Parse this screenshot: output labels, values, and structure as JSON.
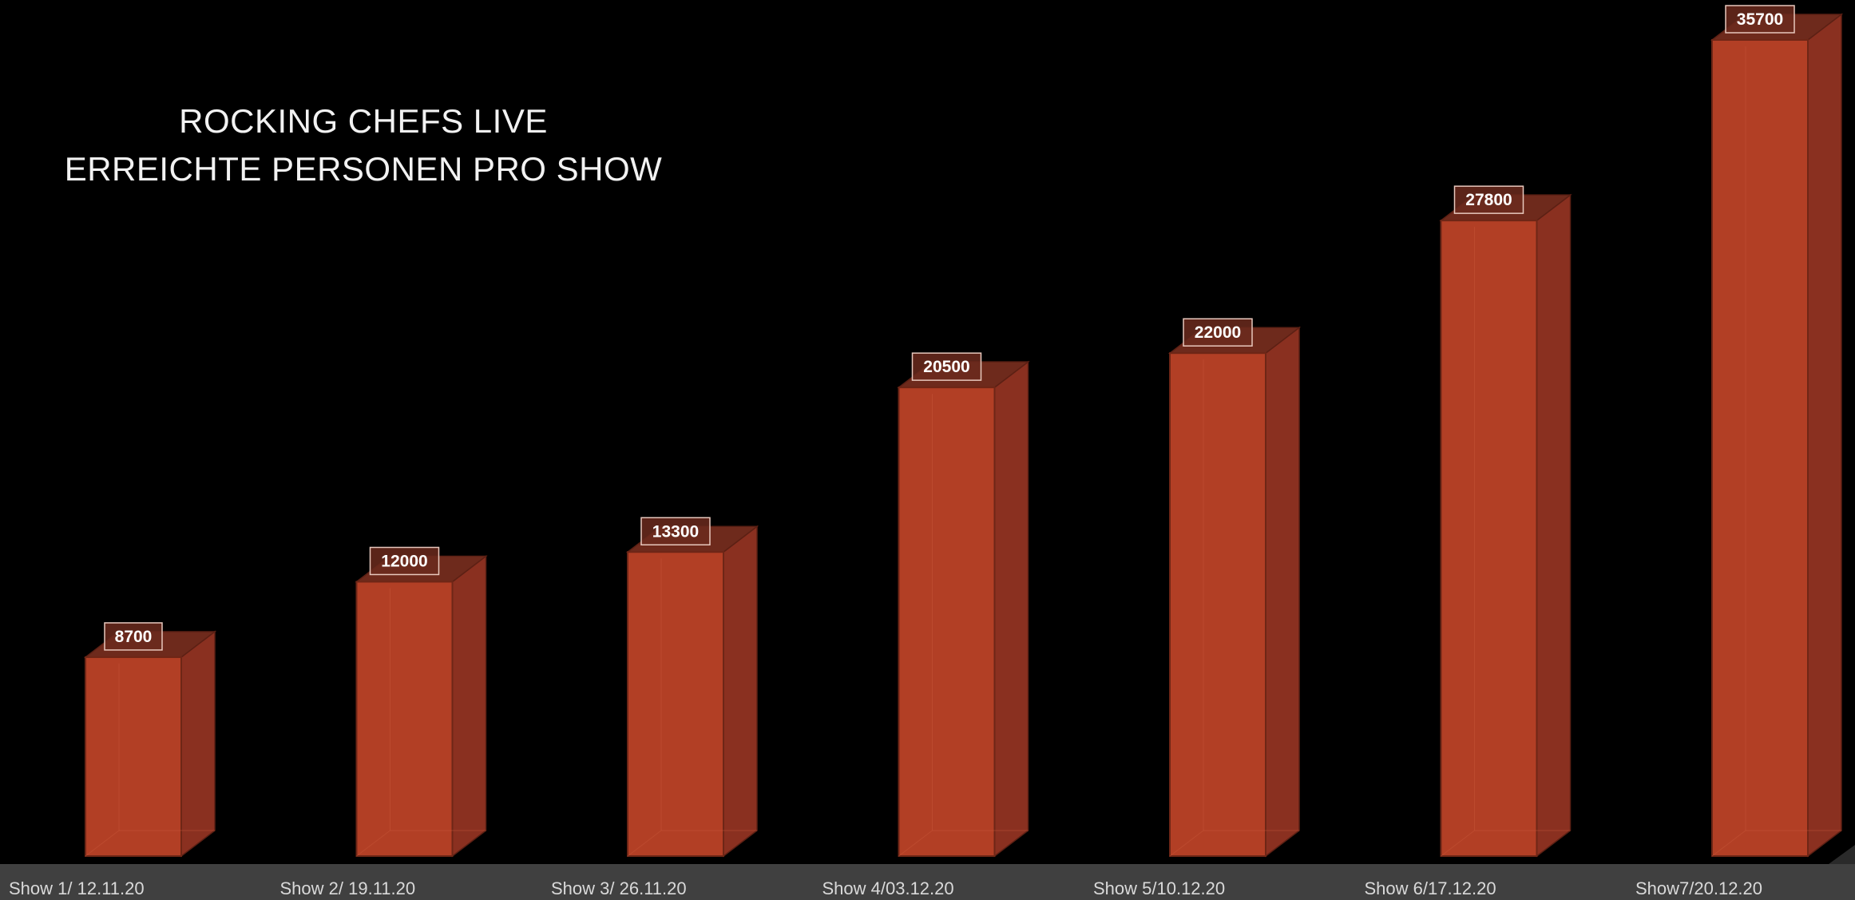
{
  "chart_data": {
    "type": "bar",
    "title_lines": [
      "ROCKING CHEFS LIVE",
      "ERREICHTE PERSONEN PRO SHOW"
    ],
    "categories": [
      "Show 1/ 12.11.20",
      "Show 2/ 19.11.20",
      "Show 3/ 26.11.20",
      "Show 4/03.12.20",
      "Show 5/10.12.20",
      "Show 6/17.12.20",
      "Show7/20.12.20"
    ],
    "values": [
      8700,
      12000,
      13300,
      20500,
      22000,
      27800,
      35700
    ],
    "data_labels": [
      "8700",
      "12000",
      "13300",
      "20500",
      "22000",
      "27800",
      "35700"
    ],
    "ylim": [
      0,
      35700
    ],
    "style": "3d-column",
    "grid": false,
    "legend": "none",
    "colors": {
      "background": "#000000",
      "bar_front": "#b23f25",
      "bar_side": "#8a3020",
      "bar_top": "#6e2a1c",
      "floor": "#404040",
      "label_text": "#ffffff",
      "axis_text": "#d9d9d9"
    }
  }
}
